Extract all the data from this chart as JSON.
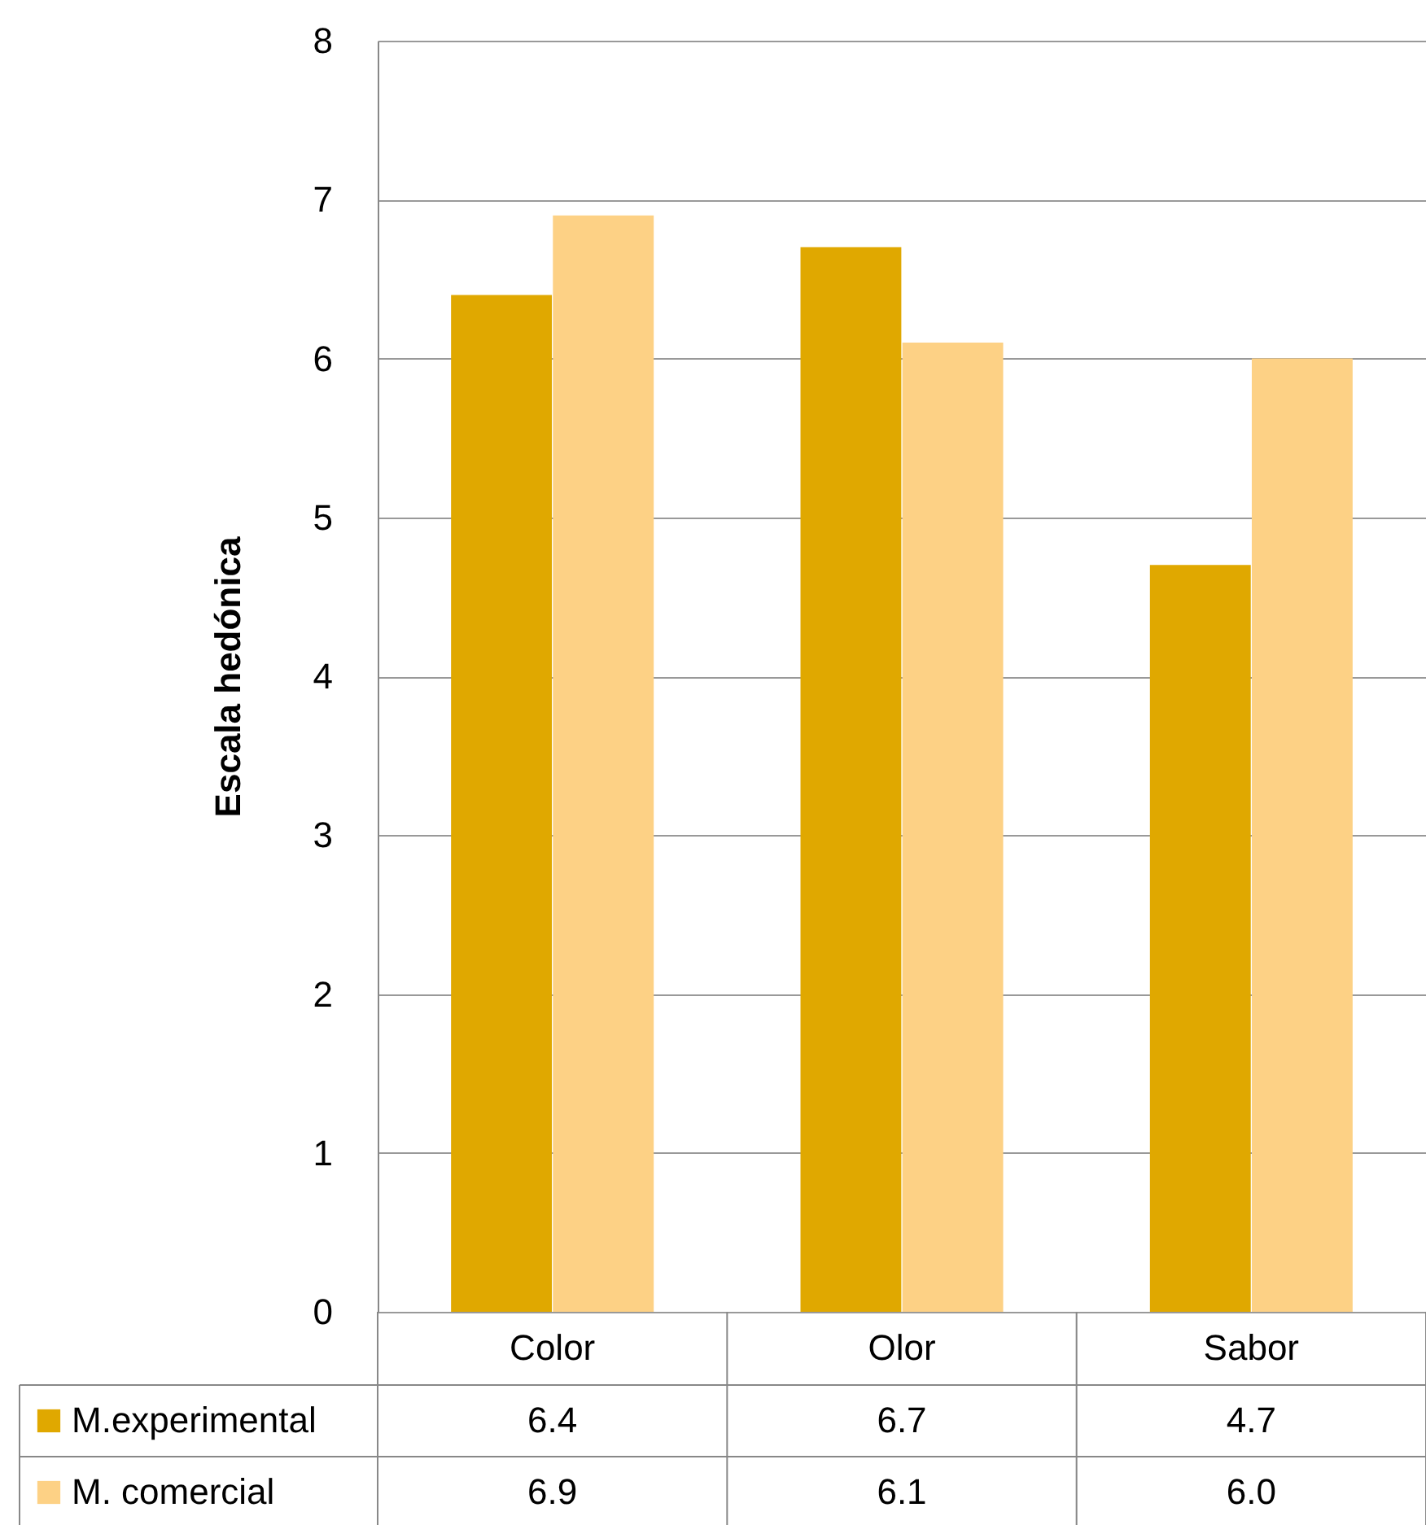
{
  "chart_data": {
    "type": "bar",
    "ylabel": "Escala hedónica",
    "categories": [
      "Color",
      "Olor",
      "Sabor"
    ],
    "series": [
      {
        "name": "M.experimental",
        "color": "#e0a800",
        "values": [
          6.4,
          6.7,
          4.7
        ],
        "value_labels": [
          "6.4",
          "6.7",
          "4.7"
        ]
      },
      {
        "name": "M. comercial",
        "color": "#fdd185",
        "values": [
          6.9,
          6.1,
          6.0
        ],
        "value_labels": [
          "6.9",
          "6.1",
          "6.0"
        ]
      }
    ],
    "ylim": [
      0,
      8
    ],
    "yticks": [
      0,
      1,
      2,
      3,
      4,
      5,
      6,
      7,
      8
    ],
    "grid": "y",
    "legend": "bottom"
  }
}
